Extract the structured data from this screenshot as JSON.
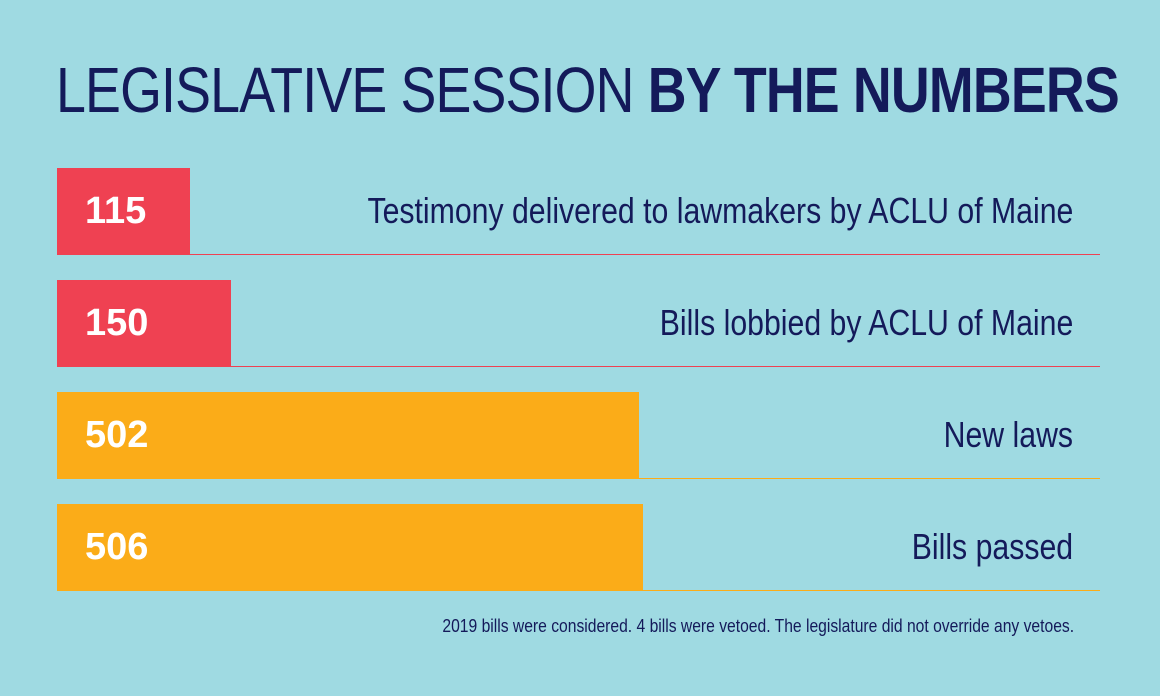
{
  "title": {
    "light": "LEGISLATIVE SESSION",
    "bold": "BY THE NUMBERS"
  },
  "chart_data": {
    "type": "bar",
    "orientation": "horizontal",
    "categories": [
      "Testimony delivered to lawmakers by ACLU of Maine",
      "Bills lobbied by ACLU of Maine",
      "New laws",
      "Bills passed"
    ],
    "values": [
      115,
      150,
      502,
      506
    ],
    "value_labels": [
      "115",
      "150",
      "502",
      "506"
    ],
    "colors": [
      "#ef4152",
      "#ef4152",
      "#fbac18",
      "#fbac18"
    ],
    "xlim": [
      0,
      900
    ],
    "grid": false,
    "legend": "none"
  },
  "footnote": "2019 bills were considered. 4 bills were vetoed. The legislature did not override any vetoes."
}
